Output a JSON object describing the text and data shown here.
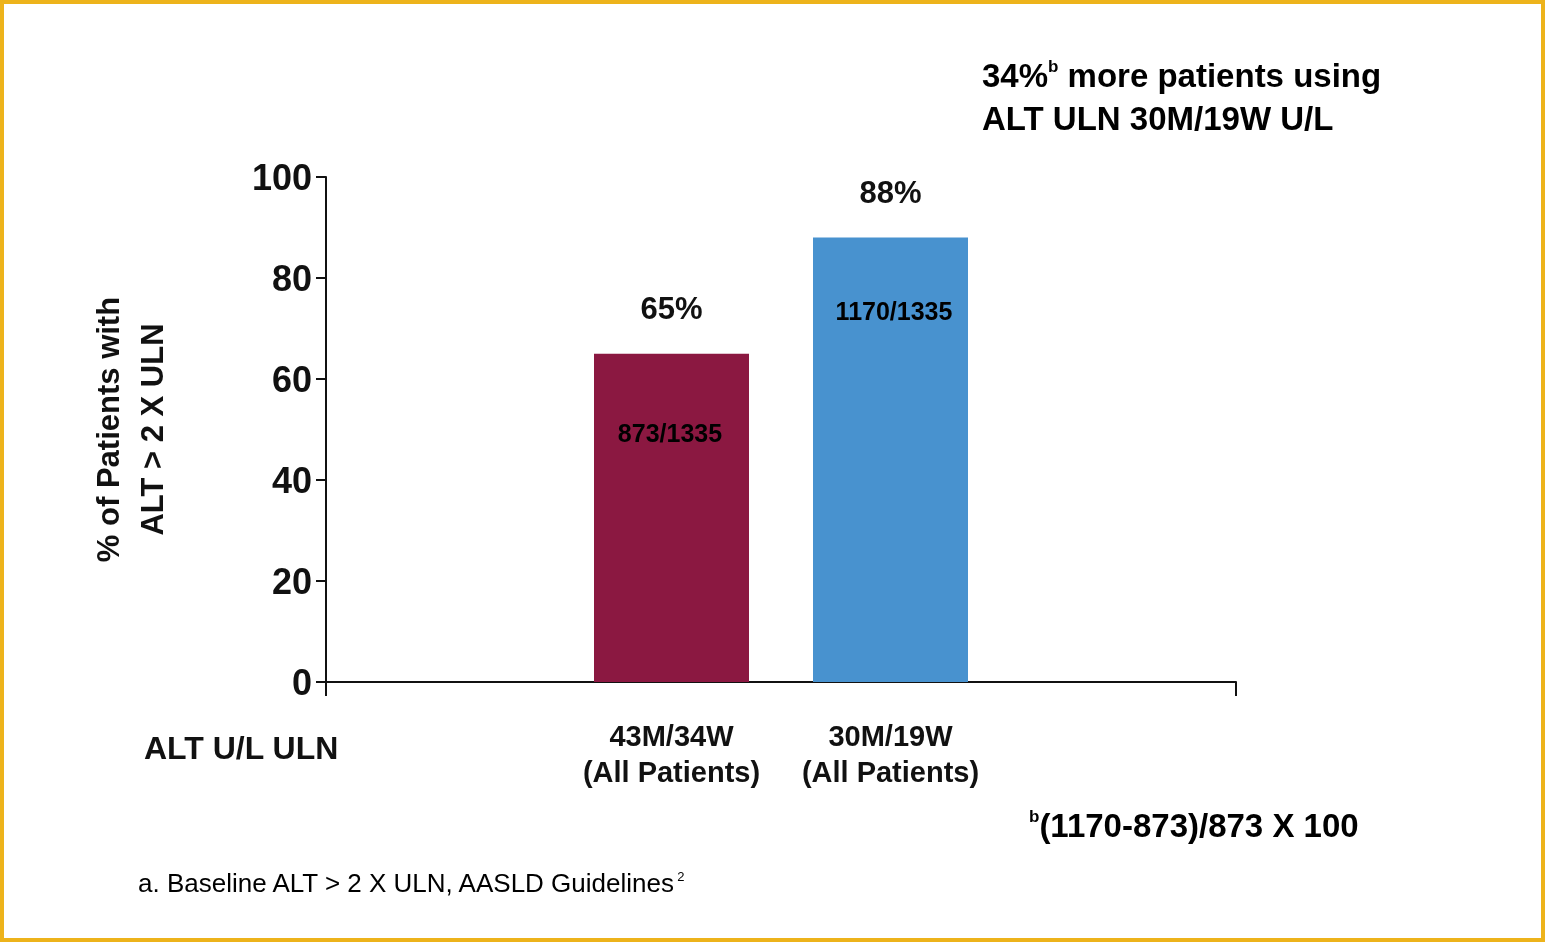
{
  "chart_data": {
    "type": "bar",
    "categories": [
      "43M/34W\n(All Patients)",
      "30M/19W\n(All Patients)"
    ],
    "values": [
      65,
      88
    ],
    "colors": [
      "#8b1841",
      "#4892cf"
    ],
    "value_labels": [
      "65%",
      "88%"
    ],
    "ylabel": "% of Patients with\nALT > 2 X ULN",
    "xlabel": "ALT U/L ULN",
    "ylim": [
      0,
      100
    ],
    "yticks": [
      0,
      20,
      40,
      60,
      80,
      100
    ],
    "grid": false,
    "annotations": [
      "873/1335",
      "1170/1335",
      "34%$^{b}$ more patients using\nALT ULN 30M/19W U/L",
      "$^{b}$(1170-873)/873 X 100",
      "a. Baseline ALT > 2 X ULN, AASLD Guidelines$^{2}$"
    ]
  }
}
